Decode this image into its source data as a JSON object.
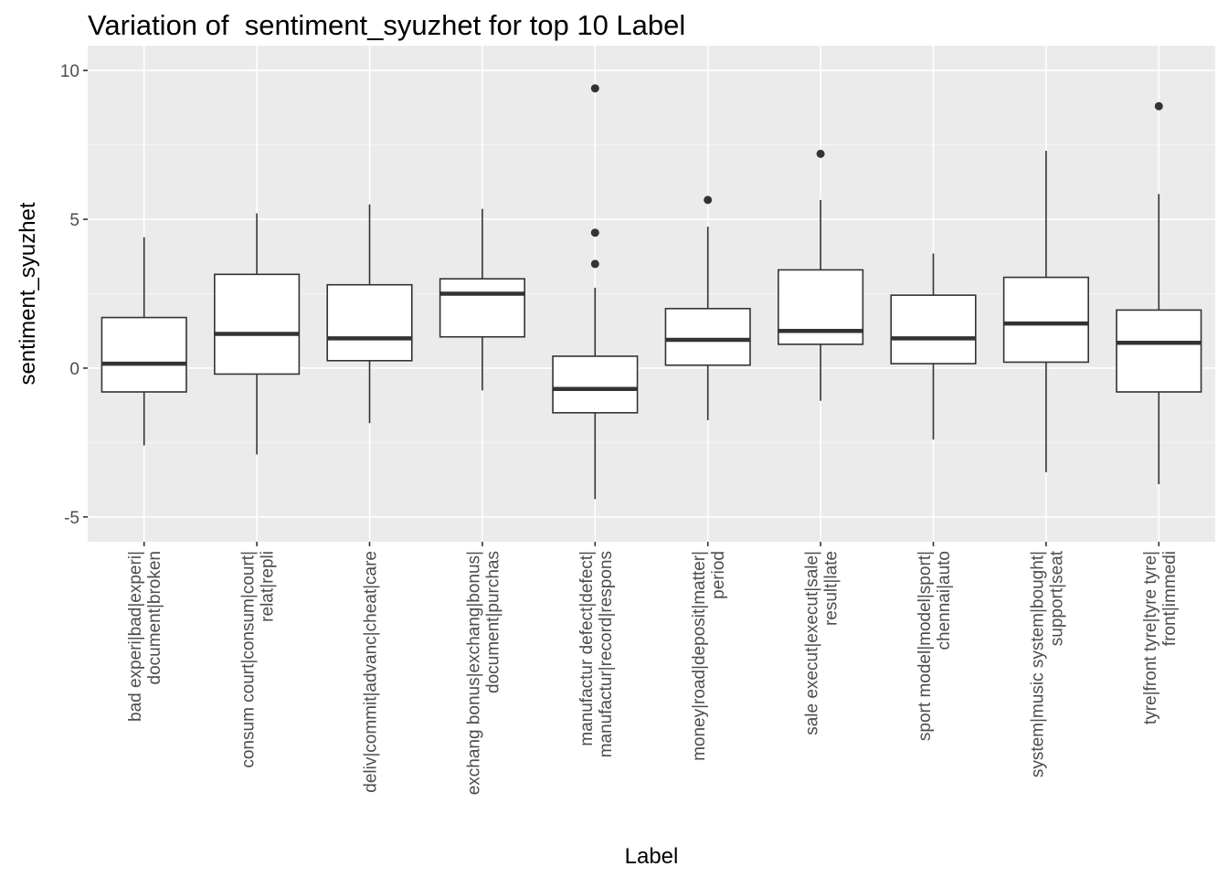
{
  "chart_data": {
    "type": "box",
    "title": "Variation of  sentiment_syuzhet for top 10 Label",
    "xlabel": "Label",
    "ylabel": "sentiment_syuzhet",
    "ylim": [
      -5,
      10
    ],
    "yticks": [
      -5,
      0,
      5,
      10
    ],
    "ytick_labels": [
      "-5",
      "0",
      "5",
      "10"
    ],
    "grid": true,
    "colors": {
      "panel": "#ebebeb",
      "grid_major": "#ffffff",
      "grid_minor": "#f5f5f5",
      "box_line": "#333333",
      "box_fill": "#ffffff"
    },
    "categories": [
      [
        "bad experi|bad|experi|",
        "document|broken"
      ],
      [
        "consum court|consum|court|",
        "relat|repli"
      ],
      [
        "deliv|commit|advanc|cheat|care"
      ],
      [
        "exchang bonus|exchang|bonus|",
        "document|purchas"
      ],
      [
        "manufactur defect|defect|",
        "manufactur|record|respons"
      ],
      [
        "money|road|deposit|matter|",
        "period"
      ],
      [
        "sale execut|execut|sale|",
        "result|late"
      ],
      [
        "sport model|model|sport|",
        "chennai|auto"
      ],
      [
        "system|music system|bought|",
        "support|seat"
      ],
      [
        "tyre|front tyre|tyre tyre|",
        "front|immedi"
      ]
    ],
    "boxes": [
      {
        "min": -2.6,
        "q1": -0.8,
        "median": 0.15,
        "q3": 1.7,
        "max": 4.4,
        "outliers": []
      },
      {
        "min": -2.9,
        "q1": -0.2,
        "median": 1.15,
        "q3": 3.15,
        "max": 5.2,
        "outliers": []
      },
      {
        "min": -1.85,
        "q1": 0.25,
        "median": 1.0,
        "q3": 2.8,
        "max": 5.5,
        "outliers": []
      },
      {
        "min": -0.75,
        "q1": 1.05,
        "median": 2.5,
        "q3": 3.0,
        "max": 5.35,
        "outliers": []
      },
      {
        "min": -4.4,
        "q1": -1.5,
        "median": -0.7,
        "q3": 0.4,
        "max": 2.7,
        "outliers": [
          9.4,
          4.55,
          3.5
        ]
      },
      {
        "min": -1.75,
        "q1": 0.1,
        "median": 0.95,
        "q3": 2.0,
        "max": 4.75,
        "outliers": [
          5.65
        ]
      },
      {
        "min": -1.1,
        "q1": 0.8,
        "median": 1.25,
        "q3": 3.3,
        "max": 5.65,
        "outliers": [
          7.2
        ]
      },
      {
        "min": -2.4,
        "q1": 0.15,
        "median": 1.0,
        "q3": 2.45,
        "max": 3.85,
        "outliers": []
      },
      {
        "min": -3.5,
        "q1": 0.2,
        "median": 1.5,
        "q3": 3.05,
        "max": 7.3,
        "outliers": []
      },
      {
        "min": -3.9,
        "q1": -0.8,
        "median": 0.85,
        "q3": 1.95,
        "max": 5.85,
        "outliers": [
          8.8
        ]
      }
    ]
  }
}
